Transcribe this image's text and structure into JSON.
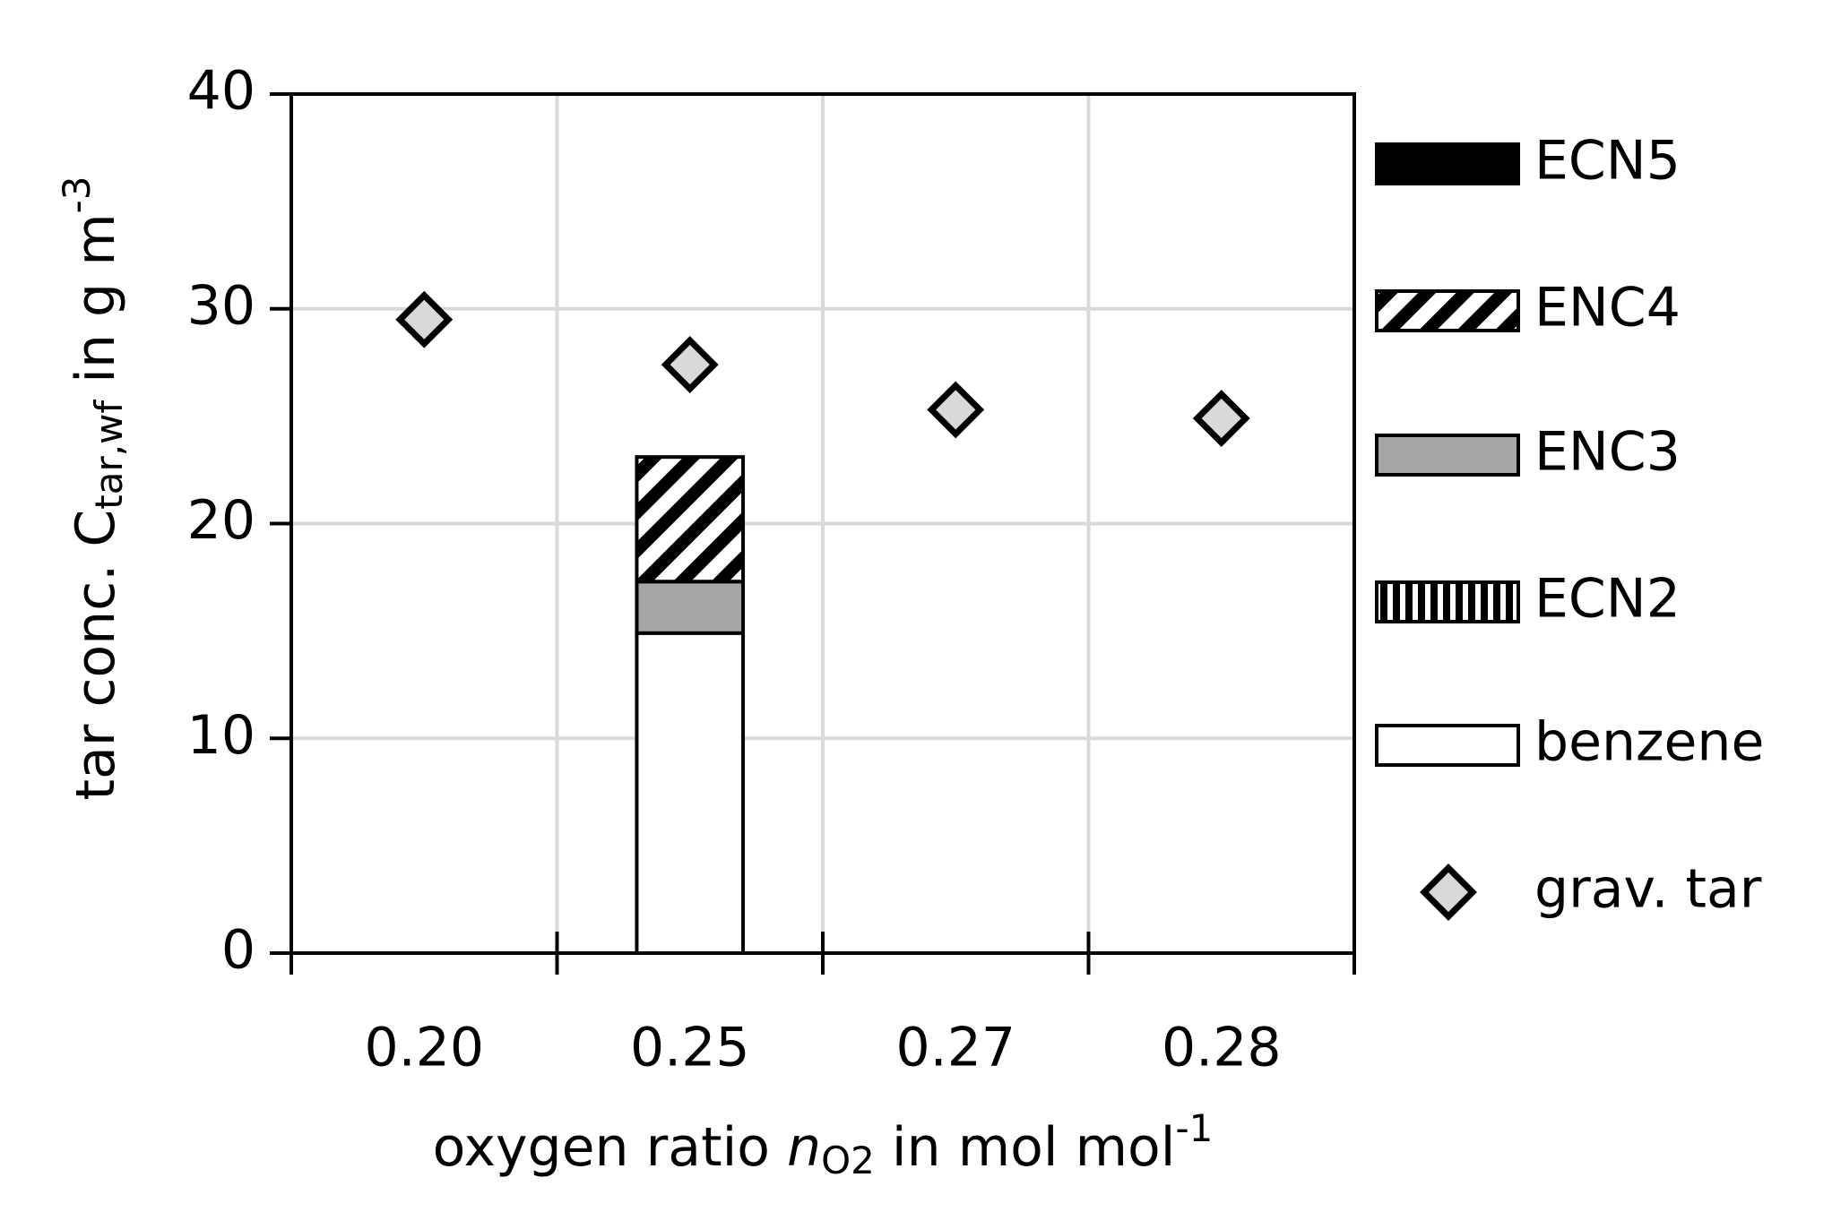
{
  "chart_data": {
    "type": "bar",
    "stacked": true,
    "categories": [
      "0.20",
      "0.25",
      "0.27",
      "0.28"
    ],
    "ylabel_parts": [
      "tar conc. C",
      "tar,wf",
      " in g m",
      "-3"
    ],
    "xlabel_parts": [
      "oxygen ratio ",
      "n",
      "O2",
      " in mol mol",
      "-1"
    ],
    "ylim": [
      0,
      40
    ],
    "yticks": [
      0,
      10,
      20,
      30,
      40
    ],
    "grid": true,
    "legend": "right",
    "series": [
      {
        "name": "benzene",
        "color": "#ffffff",
        "values": [
          null,
          14.9,
          null,
          null
        ]
      },
      {
        "name": "ECN2",
        "color": "#000000",
        "pattern": "vertical",
        "values": [
          null,
          0,
          null,
          null
        ]
      },
      {
        "name": "ENC3",
        "color": "#a6a6a6",
        "values": [
          null,
          2.4,
          null,
          null
        ]
      },
      {
        "name": "ENC4",
        "color": "#000000",
        "pattern": "diagonal",
        "values": [
          null,
          5.8,
          null,
          null
        ]
      },
      {
        "name": "ECN5",
        "color": "#000000",
        "values": [
          null,
          0,
          null,
          null
        ]
      },
      {
        "name": "grav. tar",
        "type": "scatter",
        "color": "#d9d9d9",
        "values": [
          29.5,
          27.4,
          25.3,
          24.9
        ]
      }
    ]
  }
}
